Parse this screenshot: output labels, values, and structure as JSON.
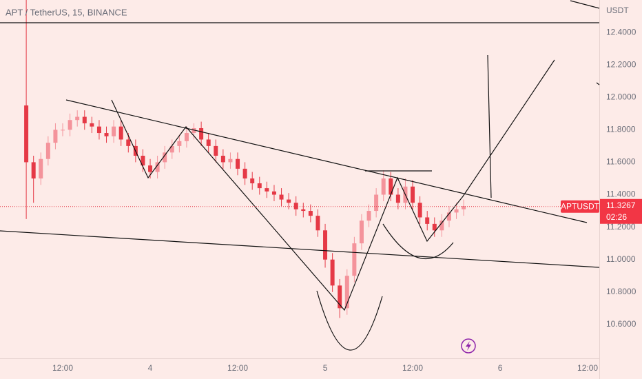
{
  "chart_data": {
    "type": "candlestick",
    "title": "APT / TetherUS, 15, BINANCE",
    "currency_label": "USDT",
    "symbol_label": "APTUSDT",
    "last_price": 11.3267,
    "countdown": "02:26",
    "up_color": "#f4939b",
    "down_color": "#e53946",
    "grid": false,
    "xlim": [
      -20.6,
      61.6
    ],
    "ylim": [
      10.37,
      12.6
    ],
    "xticks": [
      {
        "value": -12,
        "label": "12:00"
      },
      {
        "value": 0,
        "label": "4"
      },
      {
        "value": 12,
        "label": "12:00"
      },
      {
        "value": 24,
        "label": "5"
      },
      {
        "value": 36,
        "label": "12:00"
      },
      {
        "value": 48,
        "label": "6"
      },
      {
        "value": 60,
        "label": "12:00"
      }
    ],
    "yticks": [
      {
        "value": 10.6,
        "label": "10.6000"
      },
      {
        "value": 10.8,
        "label": "10.8000"
      },
      {
        "value": 11,
        "label": "11.0000"
      },
      {
        "value": 11.2,
        "label": "11.2000"
      },
      {
        "value": 11.4,
        "label": "11.4000"
      },
      {
        "value": 11.6,
        "label": "11.6000"
      },
      {
        "value": 11.8,
        "label": "11.8000"
      },
      {
        "value": 12,
        "label": "12.0000"
      },
      {
        "value": 12.2,
        "label": "12.2000"
      },
      {
        "value": 12.4,
        "label": "12.4000"
      }
    ],
    "x": [
      -17,
      -16,
      -15,
      -14,
      -13,
      -12,
      -11,
      -10,
      -9,
      -8,
      -7,
      -6,
      -5,
      -4,
      -3,
      -2,
      -1,
      0,
      1,
      2,
      3,
      4,
      5,
      6,
      7,
      8,
      9,
      10,
      11,
      12,
      13,
      14,
      15,
      16,
      17,
      18,
      19,
      20,
      21,
      22,
      23,
      24,
      25,
      26,
      27,
      28,
      29,
      30,
      31,
      32,
      33,
      34,
      35,
      36,
      37,
      38,
      39,
      40,
      41,
      42,
      43
    ],
    "open": [
      11.95,
      11.6,
      11.5,
      11.62,
      11.72,
      11.8,
      11.8,
      11.86,
      11.88,
      11.84,
      11.82,
      11.78,
      11.76,
      11.82,
      11.74,
      11.7,
      11.64,
      11.58,
      11.54,
      11.6,
      11.66,
      11.7,
      11.73,
      11.78,
      11.81,
      11.74,
      11.7,
      11.64,
      11.6,
      11.62,
      11.56,
      11.5,
      11.47,
      11.44,
      11.42,
      11.4,
      11.37,
      11.35,
      11.31,
      11.3,
      11.27,
      11.18,
      11.0,
      10.84,
      10.7,
      10.9,
      11.1,
      11.24,
      11.3,
      11.4,
      11.5,
      11.4,
      11.35,
      11.45,
      11.35,
      11.26,
      11.22,
      11.18,
      11.24,
      11.29,
      11.31
    ],
    "high": [
      12.62,
      11.64,
      11.66,
      11.76,
      11.84,
      11.84,
      11.9,
      11.92,
      11.92,
      11.88,
      11.86,
      11.82,
      11.86,
      11.86,
      11.78,
      11.74,
      11.68,
      11.62,
      11.64,
      11.7,
      11.74,
      11.77,
      11.82,
      11.84,
      11.85,
      11.78,
      11.74,
      11.68,
      11.66,
      11.66,
      11.6,
      11.54,
      11.51,
      11.48,
      11.46,
      11.44,
      11.41,
      11.39,
      11.35,
      11.34,
      11.31,
      11.22,
      11.04,
      10.88,
      10.94,
      11.14,
      11.28,
      11.34,
      11.44,
      11.55,
      11.54,
      11.44,
      11.5,
      11.49,
      11.39,
      11.3,
      11.26,
      11.28,
      11.33,
      11.35,
      11.37
    ],
    "low": [
      11.25,
      11.35,
      11.46,
      11.58,
      11.68,
      11.76,
      11.76,
      11.82,
      11.8,
      11.78,
      11.74,
      11.72,
      11.72,
      11.7,
      11.66,
      11.6,
      11.54,
      11.5,
      11.5,
      11.56,
      11.62,
      11.66,
      11.69,
      11.74,
      11.7,
      11.66,
      11.6,
      11.56,
      11.56,
      11.52,
      11.46,
      11.43,
      11.4,
      11.38,
      11.36,
      11.33,
      11.31,
      11.27,
      11.26,
      11.23,
      11.14,
      10.95,
      10.8,
      10.64,
      10.66,
      10.86,
      11.06,
      11.2,
      11.26,
      11.36,
      11.36,
      11.31,
      11.31,
      11.31,
      11.22,
      11.18,
      11.14,
      11.14,
      11.2,
      11.25,
      11.27
    ],
    "close": [
      11.6,
      11.5,
      11.62,
      11.72,
      11.8,
      11.8,
      11.86,
      11.88,
      11.84,
      11.82,
      11.78,
      11.76,
      11.82,
      11.74,
      11.7,
      11.64,
      11.58,
      11.54,
      11.6,
      11.66,
      11.7,
      11.73,
      11.78,
      11.81,
      11.74,
      11.7,
      11.64,
      11.6,
      11.62,
      11.56,
      11.5,
      11.47,
      11.44,
      11.42,
      11.4,
      11.37,
      11.35,
      11.31,
      11.3,
      11.27,
      11.18,
      11.0,
      10.84,
      10.7,
      10.9,
      11.1,
      11.24,
      11.3,
      11.4,
      11.5,
      11.4,
      11.35,
      11.45,
      11.35,
      11.26,
      11.22,
      11.18,
      11.24,
      11.29,
      11.31,
      11.33
    ]
  }
}
